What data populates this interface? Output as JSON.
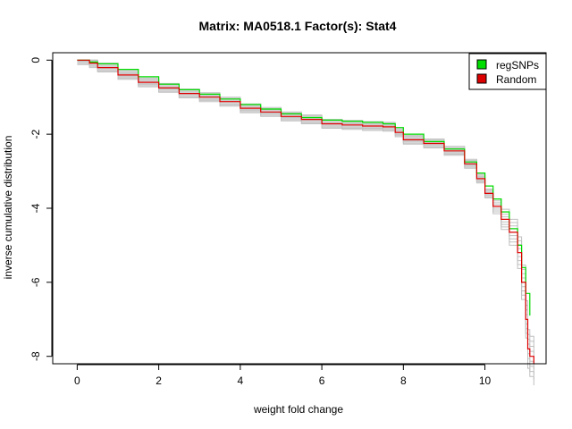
{
  "chart_data": {
    "type": "line",
    "title": "Matrix: MA0518.1 Factor(s): Stat4",
    "xlabel": "weight fold change",
    "ylabel": "inverse cumulative distribution",
    "xlim": [
      -0.6,
      11.5
    ],
    "ylim": [
      -8.2,
      0.2
    ],
    "xticks": [
      0,
      2,
      4,
      6,
      8,
      10
    ],
    "yticks": [
      0,
      -2,
      -4,
      -6,
      -8
    ],
    "grid": false,
    "legend_position": "top-right",
    "legend": [
      {
        "name": "regSNPs",
        "color": "#00dd00"
      },
      {
        "name": "Random",
        "color": "#dd0000"
      }
    ],
    "background_series_color": "#c0c0c0",
    "series": [
      {
        "name": "regSNPs",
        "color": "#00dd00",
        "x": [
          0.0,
          0.2,
          0.3,
          0.5,
          1.0,
          1.5,
          2.0,
          2.5,
          3.0,
          3.5,
          4.0,
          4.5,
          5.0,
          5.5,
          6.0,
          6.5,
          7.0,
          7.5,
          7.8,
          8.0,
          8.5,
          9.0,
          9.5,
          9.8,
          10.0,
          10.2,
          10.4,
          10.6,
          10.8,
          10.9,
          11.0,
          11.1
        ],
        "y": [
          0,
          0,
          -0.05,
          -0.1,
          -0.25,
          -0.45,
          -0.65,
          -0.8,
          -0.92,
          -1.05,
          -1.2,
          -1.32,
          -1.45,
          -1.55,
          -1.62,
          -1.65,
          -1.68,
          -1.72,
          -1.82,
          -2.0,
          -2.2,
          -2.4,
          -2.75,
          -3.05,
          -3.4,
          -3.75,
          -4.1,
          -4.55,
          -5.0,
          -5.6,
          -6.3,
          -6.9
        ]
      },
      {
        "name": "Random",
        "color": "#dd0000",
        "x": [
          0.0,
          0.2,
          0.3,
          0.5,
          1.0,
          1.5,
          2.0,
          2.5,
          3.0,
          3.5,
          4.0,
          4.5,
          5.0,
          5.5,
          6.0,
          6.5,
          7.0,
          7.5,
          7.8,
          8.0,
          8.5,
          9.0,
          9.5,
          9.8,
          10.0,
          10.2,
          10.4,
          10.6,
          10.8,
          10.9,
          11.0,
          11.05,
          11.1,
          11.2
        ],
        "y": [
          0,
          0,
          -0.08,
          -0.2,
          -0.4,
          -0.6,
          -0.75,
          -0.9,
          -1.0,
          -1.12,
          -1.3,
          -1.4,
          -1.52,
          -1.6,
          -1.72,
          -1.75,
          -1.78,
          -1.8,
          -1.95,
          -2.15,
          -2.25,
          -2.45,
          -2.8,
          -3.2,
          -3.6,
          -3.95,
          -4.3,
          -4.65,
          -5.2,
          -6.0,
          -7.0,
          -7.8,
          -8.0,
          -8.2
        ]
      }
    ]
  }
}
